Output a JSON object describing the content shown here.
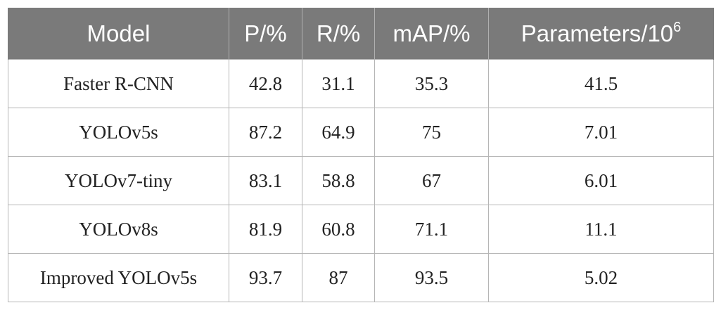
{
  "table": {
    "headers": {
      "model": "Model",
      "p": "P/%",
      "r": "R/%",
      "map": "mAP/%",
      "params_base": "Parameters/10",
      "params_exp": "6"
    },
    "rows": [
      {
        "model": "Faster R-CNN",
        "p": "42.8",
        "r": "31.1",
        "map": "35.3",
        "params": "41.5"
      },
      {
        "model": "YOLOv5s",
        "p": "87.2",
        "r": "64.9",
        "map": "75",
        "params": "7.01"
      },
      {
        "model": "YOLOv7-tiny",
        "p": "83.1",
        "r": "58.8",
        "map": "67",
        "params": "6.01"
      },
      {
        "model": "YOLOv8s",
        "p": "81.9",
        "r": "60.8",
        "map": "71.1",
        "params": "11.1"
      },
      {
        "model": "Improved YOLOv5s",
        "p": "93.7",
        "r": "87",
        "map": "93.5",
        "params": "5.02"
      }
    ]
  },
  "colors": {
    "header_bg": "#7a7a7a",
    "header_text": "#ffffff",
    "border": "#b5b5b5",
    "cell_text": "#222222"
  }
}
